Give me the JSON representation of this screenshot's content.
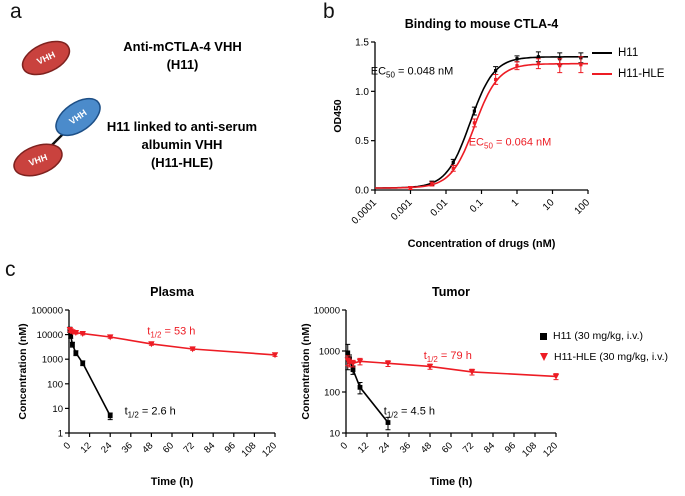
{
  "figure": {
    "panel_a_label": "a",
    "panel_b_label": "b",
    "panel_c_label": "c"
  },
  "diagram": {
    "vhh_label": "VHH",
    "red_color": "#c9423e",
    "blue_color": "#4b8bcb",
    "molecule1": {
      "line1": "Anti-mCTLA-4 VHH",
      "line2": "(H11)"
    },
    "molecule2": {
      "line1": "H11 linked to anti-serum",
      "line2": "albumin VHH",
      "line3": "(H11-HLE)"
    }
  },
  "legend_b": {
    "items": [
      {
        "label": "H11",
        "color": "#000000"
      },
      {
        "label": "H11-HLE",
        "color": "#ED1C24"
      }
    ]
  },
  "legend_c": {
    "items": [
      {
        "label": "H11 (30 mg/kg, i.v.)",
        "color": "#000000",
        "marker": "square"
      },
      {
        "label": "H11-HLE (30 mg/kg, i.v.)",
        "color": "#ED1C24",
        "marker": "triangle"
      }
    ]
  },
  "chart_data": [
    {
      "id": "binding",
      "type": "line",
      "title": "Binding to mouse CTLA-4",
      "xlabel": "Concentration of drugs (nM)",
      "ylabel": "OD450",
      "xscale": "log",
      "yscale": "linear",
      "xlim": [
        0.0001,
        100
      ],
      "ylim": [
        0,
        1.5
      ],
      "xticks": [
        0.0001,
        0.001,
        0.01,
        0.1,
        1,
        10,
        100
      ],
      "xtick_labels": [
        "0.0001",
        "0.001",
        "0.01",
        "0.1",
        "1",
        "10",
        "100"
      ],
      "yticks": [
        0,
        0.5,
        1,
        1.5
      ],
      "ytick_labels": [
        "0.0",
        "0.5",
        "1.0",
        "1.5"
      ],
      "tick_size": 10,
      "grid": false,
      "legend_position": "right",
      "series": [
        {
          "name": "H11",
          "color": "#000000",
          "marker": "tick",
          "ec50_nM": 0.048,
          "sigmoid": {
            "bottom": 0.02,
            "top": 1.35,
            "ec50": 0.048,
            "hill": 1.3
          },
          "points": [
            [
              0.001,
              0.02,
              0.015
            ],
            [
              0.004,
              0.07,
              0.02
            ],
            [
              0.016,
              0.28,
              0.03
            ],
            [
              0.063,
              0.8,
              0.04
            ],
            [
              0.25,
              1.21,
              0.04
            ],
            [
              1,
              1.33,
              0.03
            ],
            [
              4,
              1.35,
              0.05
            ],
            [
              16,
              1.33,
              0.06
            ],
            [
              63,
              1.34,
              0.05
            ]
          ]
        },
        {
          "name": "H11-HLE",
          "color": "#ED1C24",
          "marker": "tick",
          "ec50_nM": 0.064,
          "sigmoid": {
            "bottom": 0.02,
            "top": 1.28,
            "ec50": 0.064,
            "hill": 1.3
          },
          "points": [
            [
              0.001,
              0.02,
              0.015
            ],
            [
              0.004,
              0.06,
              0.02
            ],
            [
              0.016,
              0.22,
              0.03
            ],
            [
              0.063,
              0.68,
              0.04
            ],
            [
              0.25,
              1.12,
              0.05
            ],
            [
              1,
              1.26,
              0.04
            ],
            [
              4,
              1.28,
              0.05
            ],
            [
              16,
              1.26,
              0.07
            ],
            [
              63,
              1.27,
              0.08
            ]
          ]
        }
      ],
      "annotations": [
        {
          "parts": [
            {
              "t": "EC"
            },
            {
              "t": "50",
              "sub": true
            },
            {
              "t": " = 0.048 nM"
            }
          ],
          "fx": -0.02,
          "fy": 0.22,
          "color": "#000000"
        },
        {
          "parts": [
            {
              "t": "EC"
            },
            {
              "t": "50",
              "sub": true
            },
            {
              "t": " = 0.064 nM"
            }
          ],
          "fx": 0.44,
          "fy": 0.7,
          "color": "#ED1C24"
        }
      ]
    },
    {
      "id": "plasma",
      "type": "line",
      "title": "Plasma",
      "xlabel": "Time (h)",
      "ylabel": "Concentration (nM)",
      "xscale": "linear",
      "yscale": "log",
      "xlim": [
        0,
        120
      ],
      "ylim": [
        1,
        100000
      ],
      "xticks": [
        0,
        12,
        24,
        36,
        48,
        60,
        72,
        84,
        96,
        108,
        120
      ],
      "xtick_labels": [
        "0",
        "12",
        "24",
        "36",
        "48",
        "60",
        "72",
        "84",
        "96",
        "108",
        "120"
      ],
      "yticks": [
        1,
        10,
        100,
        1000,
        10000,
        100000
      ],
      "ytick_labels": [
        "1",
        "10",
        "100",
        "1000",
        "10000",
        "100000"
      ],
      "tick_size": 9.5,
      "grid": false,
      "series": [
        {
          "name": "H11 (30 mg/kg, i.v.)",
          "color": "#000000",
          "marker": "square",
          "half_life_h": 2.6,
          "points": [
            [
              0.5,
              16000,
              4000
            ],
            [
              1,
              9000,
              2000
            ],
            [
              2,
              4000,
              900
            ],
            [
              4,
              1800,
              400
            ],
            [
              8,
              700,
              150
            ],
            [
              24,
              5,
              1.5
            ]
          ]
        },
        {
          "name": "H11-HLE (30 mg/kg, i.v.)",
          "color": "#ED1C24",
          "marker": "triangle",
          "half_life_h": 53,
          "points": [
            [
              0.5,
              16000,
              3000
            ],
            [
              1,
              14000,
              2000
            ],
            [
              2,
              13000,
              1500
            ],
            [
              4,
              12000,
              1400
            ],
            [
              8,
              11000,
              1200
            ],
            [
              24,
              8000,
              900
            ],
            [
              48,
              4200,
              500
            ],
            [
              72,
              2600,
              300
            ],
            [
              120,
              1500,
              200
            ]
          ]
        }
      ],
      "annotations": [
        {
          "parts": [
            {
              "t": "t"
            },
            {
              "t": "1/2",
              "sub": true
            },
            {
              "t": " = 53 h"
            }
          ],
          "fx": 0.38,
          "fy": 0.2,
          "color": "#ED1C24"
        },
        {
          "parts": [
            {
              "t": "t"
            },
            {
              "t": "1/2",
              "sub": true
            },
            {
              "t": " = 2.6 h"
            }
          ],
          "fx": 0.27,
          "fy": 0.85,
          "color": "#000000"
        }
      ]
    },
    {
      "id": "tumor",
      "type": "line",
      "title": "Tumor",
      "xlabel": "Time (h)",
      "ylabel": "Concentration (nM)",
      "xscale": "linear",
      "yscale": "log",
      "xlim": [
        0,
        120
      ],
      "ylim": [
        10,
        10000
      ],
      "xticks": [
        0,
        12,
        24,
        36,
        48,
        60,
        72,
        84,
        96,
        108,
        120
      ],
      "xtick_labels": [
        "0",
        "12",
        "24",
        "36",
        "48",
        "60",
        "72",
        "84",
        "96",
        "108",
        "120"
      ],
      "yticks": [
        10,
        100,
        1000,
        10000
      ],
      "ytick_labels": [
        "10",
        "100",
        "1000",
        "10000"
      ],
      "tick_size": 9.5,
      "grid": false,
      "series": [
        {
          "name": "H11 (30 mg/kg, i.v.)",
          "color": "#000000",
          "marker": "square",
          "half_life_h": 4.5,
          "points": [
            [
              1,
              900,
              550
            ],
            [
              2,
              650,
              150
            ],
            [
              4,
              350,
              80
            ],
            [
              8,
              130,
              40
            ],
            [
              24,
              18,
              6
            ]
          ]
        },
        {
          "name": "H11-HLE (30 mg/kg, i.v.)",
          "color": "#ED1C24",
          "marker": "triangle",
          "half_life_h": 79,
          "points": [
            [
              1,
              600,
              160
            ],
            [
              2,
              520,
              110
            ],
            [
              4,
              500,
              90
            ],
            [
              8,
              560,
              100
            ],
            [
              24,
              500,
              80
            ],
            [
              48,
              420,
              60
            ],
            [
              72,
              310,
              50
            ],
            [
              120,
              240,
              40
            ]
          ]
        }
      ],
      "annotations": [
        {
          "parts": [
            {
              "t": "t"
            },
            {
              "t": "1/2",
              "sub": true
            },
            {
              "t": " = 79 h"
            }
          ],
          "fx": 0.37,
          "fy": 0.4,
          "color": "#ED1C24"
        },
        {
          "parts": [
            {
              "t": "t"
            },
            {
              "t": "1/2",
              "sub": true
            },
            {
              "t": " = 4.5 h"
            }
          ],
          "fx": 0.18,
          "fy": 0.85,
          "color": "#000000"
        }
      ]
    }
  ]
}
